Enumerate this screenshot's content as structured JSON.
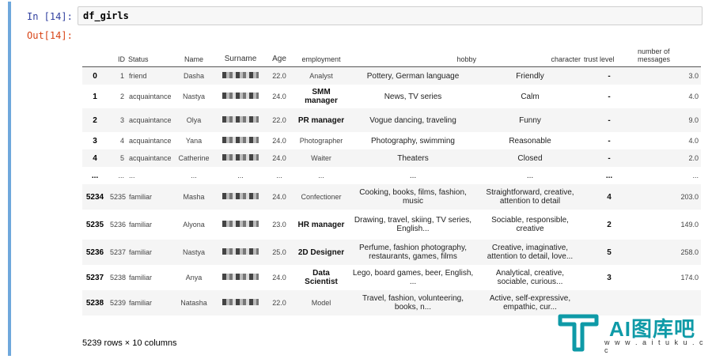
{
  "notebook": {
    "in_prompt": "In [14]:",
    "out_prompt": "Out[14]:",
    "code": "df_girls",
    "footer": "5239 rows × 10 columns"
  },
  "table": {
    "columns": [
      "",
      "ID",
      "Status",
      "Name",
      "Surname",
      "Age",
      "employment",
      "hobby",
      "character",
      "trust level",
      "number of messages"
    ],
    "rows": [
      {
        "index": "0",
        "id": "1",
        "status": "friend",
        "name": "Dasha",
        "age": "22.0",
        "employment": "Analyst",
        "hobby": "Pottery, German language",
        "character": "Friendly",
        "trust": "-",
        "messages": "3.0"
      },
      {
        "index": "1",
        "id": "2",
        "status": "acquaintance",
        "name": "Nastya",
        "age": "24.0",
        "employment": "SMM manager",
        "hobby": "News, TV series",
        "character": "Calm",
        "trust": "-",
        "messages": "4.0"
      },
      {
        "index": "2",
        "id": "3",
        "status": "acquaintance",
        "name": "Olya",
        "age": "22.0",
        "employment": "PR manager",
        "hobby": "Vogue dancing, traveling",
        "character": "Funny",
        "trust": "-",
        "messages": "9.0"
      },
      {
        "index": "3",
        "id": "4",
        "status": "acquaintance",
        "name": "Yana",
        "age": "24.0",
        "employment": "Photographer",
        "hobby": "Photography, swimming",
        "character": "Reasonable",
        "trust": "-",
        "messages": "4.0"
      },
      {
        "index": "4",
        "id": "5",
        "status": "acquaintance",
        "name": "Catherine",
        "age": "24.0",
        "employment": "Waiter",
        "hobby": "Theaters",
        "character": "Closed",
        "trust": "-",
        "messages": "2.0"
      },
      {
        "index": "...",
        "id": "...",
        "status": "...",
        "name": "...",
        "age": "...",
        "employment": "...",
        "hobby": "...",
        "character": "...",
        "trust": "...",
        "messages": "..."
      },
      {
        "index": "5234",
        "id": "5235",
        "status": "familiar",
        "name": "Masha",
        "age": "24.0",
        "employment": "Confectioner",
        "hobby": "Cooking, books, films, fashion, music",
        "character": "Straightforward, creative, attention to detail",
        "trust": "4",
        "messages": "203.0"
      },
      {
        "index": "5235",
        "id": "5236",
        "status": "familiar",
        "name": "Alyona",
        "age": "23.0",
        "employment": "HR manager",
        "hobby": "Drawing, travel, skiing, TV series, English...",
        "character": "Sociable, responsible, creative",
        "trust": "2",
        "messages": "149.0"
      },
      {
        "index": "5236",
        "id": "5237",
        "status": "familiar",
        "name": "Nastya",
        "age": "25.0",
        "employment": "2D Designer",
        "hobby": "Perfume, fashion photography, restaurants, games, films",
        "character": "Creative, imaginative, attention to detail, love...",
        "trust": "5",
        "messages": "258.0"
      },
      {
        "index": "5237",
        "id": "5238",
        "status": "familiar",
        "name": "Anya",
        "age": "24.0",
        "employment": "Data Scientist",
        "hobby": "Lego, board games, beer, English, ...",
        "character": "Analytical, creative, sociable, curious...",
        "trust": "3",
        "messages": "174.0"
      },
      {
        "index": "5238",
        "id": "5239",
        "status": "familiar",
        "name": "Natasha",
        "age": "22.0",
        "employment": "Model",
        "hobby": "Travel, fashion, volunteering, books, n...",
        "character": "Active, self-expressive, empathic, cur...",
        "trust": "",
        "messages": ""
      }
    ]
  },
  "watermark": {
    "brand": "AI图库吧",
    "url": "w w w . a i t u k u . c c",
    "color": "#0e9aa7"
  }
}
